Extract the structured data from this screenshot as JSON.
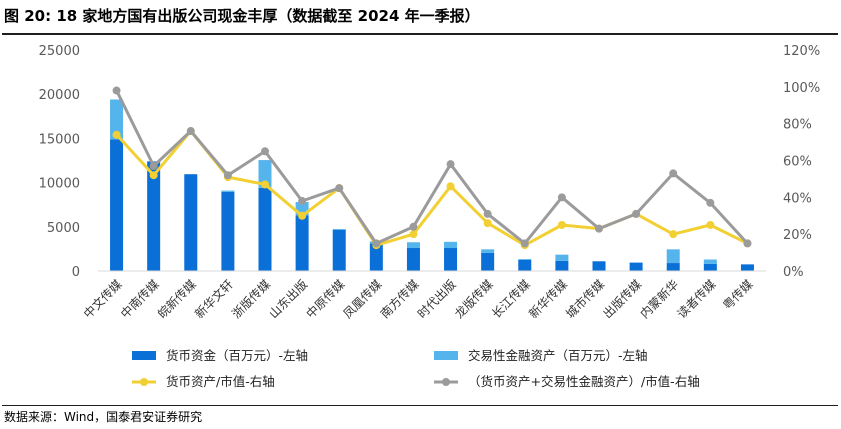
{
  "title": "图 20:  18 家地方国有出版公司现金丰厚（数据截至 2024 年一季报）",
  "source": "数据来源：Wind，国泰君安证券研究",
  "colors": {
    "cash": "#0a6fd6",
    "fin": "#56b4ec",
    "cash_ratio": "#f2d033",
    "total_ratio": "#9b9b9b"
  },
  "chart_data": {
    "type": "bar",
    "stacked": true,
    "categories": [
      "中文传媒",
      "中南传媒",
      "皖新传媒",
      "新华文轩",
      "浙版传媒",
      "山东出版",
      "中原传媒",
      "凤凰传媒",
      "南方传媒",
      "时代出版",
      "龙版传媒",
      "长江传媒",
      "新华传媒",
      "城市传媒",
      "出版传媒",
      "内蒙新华",
      "读者传媒",
      "粤传媒"
    ],
    "ylim_left": [
      0,
      25000
    ],
    "yticks_left": [
      "0",
      "5000",
      "10000",
      "15000",
      "20000",
      "25000"
    ],
    "ylim_right": [
      0,
      1.2
    ],
    "yticks_right": [
      "0%",
      "20%",
      "40%",
      "60%",
      "80%",
      "100%",
      "120%"
    ],
    "grid": false,
    "legend_position": "bottom",
    "series": [
      {
        "name": "货币资金（百万元）-左轴",
        "type": "bar",
        "axis": "left",
        "values": [
          14900,
          12400,
          10950,
          8950,
          9400,
          6300,
          4650,
          3100,
          2600,
          2600,
          2050,
          1250,
          1150,
          1100,
          950,
          900,
          800,
          750
        ]
      },
      {
        "name": "交易性金融资产（百万元）-左轴",
        "type": "bar",
        "axis": "left",
        "values": [
          4500,
          0,
          0,
          150,
          3150,
          1500,
          100,
          250,
          650,
          700,
          400,
          100,
          700,
          0,
          0,
          1550,
          500,
          0
        ]
      },
      {
        "name": "货币资产/市值-右轴",
        "type": "line",
        "axis": "right",
        "values": [
          0.74,
          0.52,
          0.76,
          0.51,
          0.47,
          0.3,
          0.45,
          0.14,
          0.2,
          0.46,
          0.26,
          0.14,
          0.25,
          0.23,
          0.31,
          0.2,
          0.25,
          0.15
        ]
      },
      {
        "name": "（货币资产+交易性金融资产）/市值-右轴",
        "type": "line",
        "axis": "right",
        "values": [
          0.98,
          0.57,
          0.76,
          0.52,
          0.65,
          0.38,
          0.45,
          0.15,
          0.24,
          0.58,
          0.31,
          0.15,
          0.4,
          0.23,
          0.31,
          0.53,
          0.37,
          0.15
        ]
      }
    ]
  }
}
